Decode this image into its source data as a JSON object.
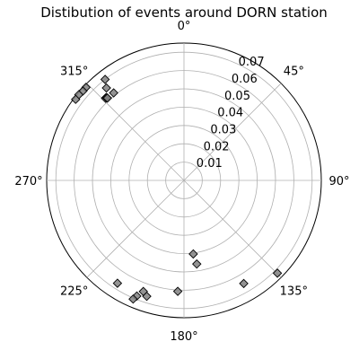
{
  "chart_data": {
    "type": "scatter",
    "projection": "polar",
    "title": "Distibution of events around DORN station",
    "theta_zero_location": "N",
    "theta_direction": "clockwise",
    "theta_ticks": [
      0,
      45,
      90,
      135,
      180,
      225,
      270,
      315
    ],
    "theta_tick_labels": [
      "0°",
      "45°",
      "90°",
      "135°",
      "180°",
      "225°",
      "270°",
      "315°"
    ],
    "r_ticks": [
      0.01,
      0.02,
      0.03,
      0.04,
      0.05,
      0.06,
      0.07
    ],
    "r_tick_labels": [
      "0.01",
      "0.02",
      "0.03",
      "0.04",
      "0.05",
      "0.06",
      "0.07"
    ],
    "rlim": [
      0,
      0.075
    ],
    "grid": true,
    "marker": "diamond",
    "marker_color": "#808080",
    "marker_edge_color": "#000000",
    "series": [
      {
        "name": "",
        "points": [
          {
            "theta": 313.5,
            "r": 0.0738
          },
          {
            "theta": 311.5,
            "r": 0.0737
          },
          {
            "theta": 309.2,
            "r": 0.0741
          },
          {
            "theta": 306.8,
            "r": 0.0739
          },
          {
            "theta": 316.7,
            "r": 0.0621
          },
          {
            "theta": 316.3,
            "r": 0.062
          },
          {
            "theta": 316.9,
            "r": 0.0619
          },
          {
            "theta": 317.1,
            "r": 0.0614
          },
          {
            "theta": 321.2,
            "r": 0.0613
          },
          {
            "theta": 320.0,
            "r": 0.0659
          },
          {
            "theta": 322.0,
            "r": 0.07
          },
          {
            "theta": 172.8,
            "r": 0.0405
          },
          {
            "theta": 171.3,
            "r": 0.0462
          },
          {
            "theta": 149.9,
            "r": 0.0651
          },
          {
            "theta": 134.8,
            "r": 0.0719
          },
          {
            "theta": 183.2,
            "r": 0.0607
          },
          {
            "theta": 197.8,
            "r": 0.0665
          },
          {
            "theta": 202.2,
            "r": 0.0682
          },
          {
            "theta": 212.9,
            "r": 0.0669
          },
          {
            "theta": 200.1,
            "r": 0.0646
          },
          {
            "theta": 203.2,
            "r": 0.0705
          }
        ]
      }
    ]
  }
}
